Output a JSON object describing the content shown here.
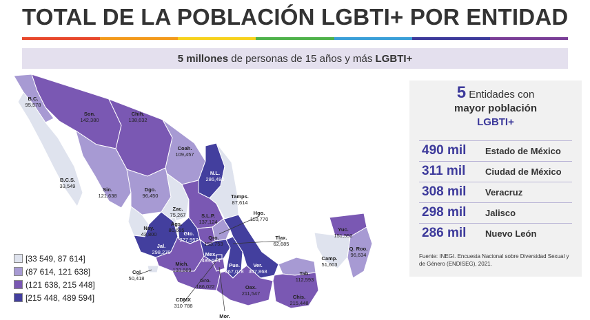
{
  "title": "TOTAL DE LA POBLACIÓN LGBTI+ POR ENTIDAD",
  "rainbow_colors": [
    "#e8482c",
    "#f39a1c",
    "#f7d21d",
    "#4fb24a",
    "#3a9fd8",
    "#3d3a9b",
    "#7a3e97"
  ],
  "subtitle": {
    "bold": "5 millones",
    "middle": " de personas de 15 años y más ",
    "tail": "LGBTI+"
  },
  "colors": {
    "bin1": "#dfe3ee",
    "bin2": "#a79ad3",
    "bin3": "#7a58b3",
    "bin4": "#433f9e",
    "accent": "#3d3a9b"
  },
  "legend": [
    {
      "label": "[33 549, 87 614]",
      "color": "#dfe3ee"
    },
    {
      "label": "(87 614, 121 638]",
      "color": "#a79ad3"
    },
    {
      "label": "(121 638, 215 448]",
      "color": "#7a58b3"
    },
    {
      "label": "[215 448, 489 594]",
      "color": "#433f9e"
    }
  ],
  "states": [
    {
      "name": "B.C.",
      "value": "95,578",
      "bin": 2
    },
    {
      "name": "Son.",
      "value": "142,380",
      "bin": 3
    },
    {
      "name": "Chih.",
      "value": "138,632",
      "bin": 3
    },
    {
      "name": "Coah.",
      "value": "109,457",
      "bin": 2
    },
    {
      "name": "N.L.",
      "value": "286,490",
      "bin": 4
    },
    {
      "name": "B.C.S.",
      "value": "33,549",
      "bin": 1
    },
    {
      "name": "Sin.",
      "value": "121,638",
      "bin": 2
    },
    {
      "name": "Dgo.",
      "value": "96,450",
      "bin": 2
    },
    {
      "name": "Tamps.",
      "value": "87,614",
      "bin": 1
    },
    {
      "name": "Zac.",
      "value": "75,267",
      "bin": 1
    },
    {
      "name": "S.L.P.",
      "value": "137,124",
      "bin": 3
    },
    {
      "name": "Hgo.",
      "value": "110,770",
      "bin": 2
    },
    {
      "name": "Nay.",
      "value": "43,800",
      "bin": 1
    },
    {
      "name": "Ags.",
      "value": "80,655",
      "bin": 1
    },
    {
      "name": "Jal.",
      "value": "298,270",
      "bin": 4
    },
    {
      "name": "Gto.",
      "value": "227,957",
      "bin": 4
    },
    {
      "name": "Qro.",
      "value": "153,753",
      "bin": 3
    },
    {
      "name": "Tlax.",
      "value": "62,685",
      "bin": 1
    },
    {
      "name": "Yuc.",
      "value": "151,552",
      "bin": 3
    },
    {
      "name": "Q. Roo.",
      "value": "96,634",
      "bin": 2
    },
    {
      "name": "Mich.",
      "value": "133,669",
      "bin": 3
    },
    {
      "name": "Mex.",
      "value": "489,594",
      "bin": 4
    },
    {
      "name": "Pue.",
      "value": "267,078",
      "bin": 4
    },
    {
      "name": "Ver.",
      "value": "307,868",
      "bin": 4
    },
    {
      "name": "Col",
      "value": "50,418",
      "bin": 1
    },
    {
      "name": "Camp.",
      "value": "51,603",
      "bin": 1
    },
    {
      "name": "Tab.",
      "value": "112,593",
      "bin": 2
    },
    {
      "name": "Gro.",
      "value": "186,022",
      "bin": 3
    },
    {
      "name": "Oax.",
      "value": "211,547",
      "bin": 3
    },
    {
      "name": "Chis.",
      "value": "215,448",
      "bin": 3
    },
    {
      "name": "CDMX",
      "value": "310 788",
      "bin": 4
    },
    {
      "name": "Mor.",
      "value": "",
      "bin": 3
    }
  ],
  "panel": {
    "count": "5",
    "line1": " Entidades con",
    "line2": "mayor población",
    "line3": "LGBTI+",
    "top5": [
      {
        "value": "490 mil",
        "state": "Estado de México"
      },
      {
        "value": "311 mil",
        "state": "Ciudad de México"
      },
      {
        "value": "308 mil",
        "state": "Veracruz"
      },
      {
        "value": "298 mil",
        "state": "Jalisco"
      },
      {
        "value": "286 mil",
        "state": "Nuevo León"
      }
    ],
    "source": "Fuente:  INEGI. Encuesta Nacional sobre Diversidad Sexual y de Género (ENDISEG), 2021."
  }
}
